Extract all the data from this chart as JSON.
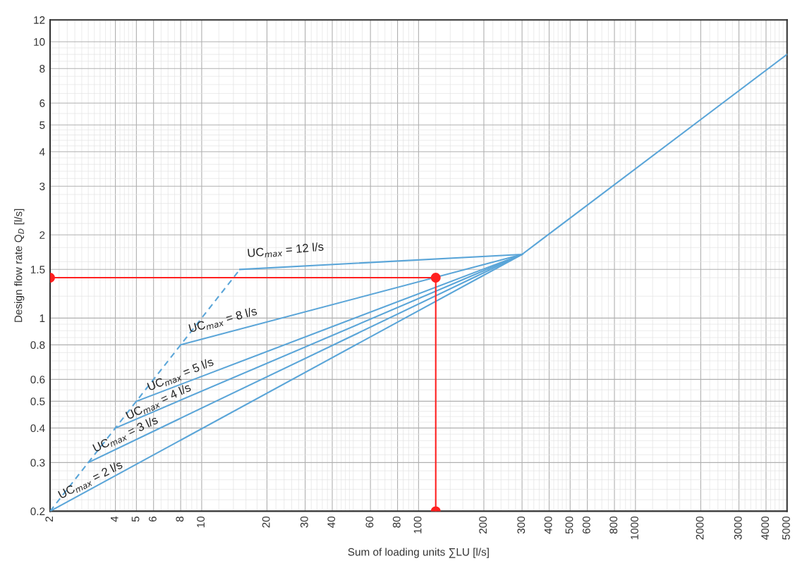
{
  "chart_data": {
    "type": "line",
    "xlabel": "Sum of loading units ∑LU [l/s]",
    "ylabel": "Design flow rate Q$_{D}$ [l/s]",
    "log": "xy",
    "grid": true,
    "xlim": [
      2,
      5000
    ],
    "ylim": [
      0.2,
      12
    ],
    "xticks": [
      2,
      4,
      5,
      6,
      8,
      10,
      20,
      30,
      40,
      60,
      80,
      100,
      200,
      300,
      400,
      500,
      600,
      800,
      1000,
      2000,
      3000,
      4000,
      5000
    ],
    "yticks": [
      0.2,
      0.3,
      0.4,
      0.5,
      0.6,
      0.8,
      1,
      1.5,
      2,
      3,
      4,
      5,
      6,
      8,
      10,
      12
    ],
    "series": [
      {
        "color": "#5aa5d8",
        "line_style": "dashed",
        "marker": "none",
        "x": [
          2,
          15
        ],
        "values": [
          0.2,
          1.5
        ]
      },
      {
        "color": "#5aa5d8",
        "line_style": "solid",
        "marker": "none",
        "x": [
          2,
          300
        ],
        "values": [
          0.2,
          1.7
        ]
      },
      {
        "color": "#5aa5d8",
        "line_style": "solid",
        "marker": "none",
        "x": [
          3,
          300
        ],
        "values": [
          0.3,
          1.7
        ]
      },
      {
        "color": "#5aa5d8",
        "line_style": "solid",
        "marker": "none",
        "x": [
          4,
          300
        ],
        "values": [
          0.4,
          1.7
        ]
      },
      {
        "color": "#5aa5d8",
        "line_style": "solid",
        "marker": "none",
        "x": [
          5,
          300
        ],
        "values": [
          0.5,
          1.7
        ]
      },
      {
        "color": "#5aa5d8",
        "line_style": "solid",
        "marker": "none",
        "x": [
          8,
          300
        ],
        "values": [
          0.8,
          1.7
        ]
      },
      {
        "color": "#5aa5d8",
        "line_style": "solid",
        "marker": "none",
        "x": [
          15,
          300,
          5000
        ],
        "values": [
          1.5,
          1.7,
          9
        ]
      },
      {
        "color": "#ff2020",
        "line_style": "solid",
        "marker": "circle",
        "x": [
          2,
          120,
          120
        ],
        "values": [
          1.4,
          1.4,
          0.2
        ]
      }
    ],
    "annotations": [
      {
        "text": "UC$_{max}$ = 2 l/s",
        "x": 2,
        "y": 0.2
      },
      {
        "text": "UC$_{max}$ = 3 l/s",
        "x": 3,
        "y": 0.3
      },
      {
        "text": "UC$_{max}$ = 4 l/s",
        "x": 4,
        "y": 0.4
      },
      {
        "text": "UC$_{max}$ = 5 l/s",
        "x": 5,
        "y": 0.5
      },
      {
        "text": "UC$_{max}$ = 8 l/s",
        "x": 8,
        "y": 0.8
      },
      {
        "text": "UC$_{max}$ = 12 l/s",
        "x": 15,
        "y": 1.5
      }
    ]
  }
}
